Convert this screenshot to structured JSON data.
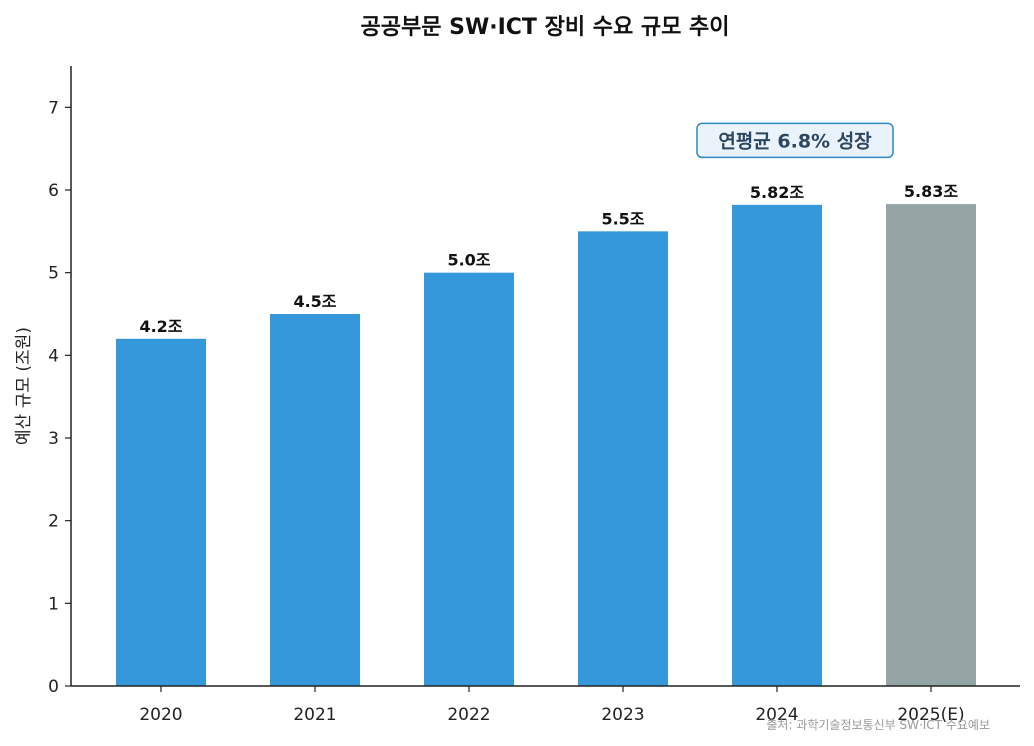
{
  "chart_data": {
    "type": "bar",
    "title": "공공부문 SW·ICT 장비 수요 규모 추이",
    "ylabel": "예산 규모 (조원)",
    "xlabel": "",
    "categories": [
      "2020",
      "2021",
      "2022",
      "2023",
      "2024",
      "2025(E)"
    ],
    "values": [
      4.2,
      4.5,
      5.0,
      5.5,
      5.82,
      5.83
    ],
    "data_labels": [
      "4.2조",
      "4.5조",
      "5.0조",
      "5.5조",
      "5.82조",
      "5.83조"
    ],
    "bar_colors": [
      "#3598db",
      "#3598db",
      "#3598db",
      "#3598db",
      "#3598db",
      "#95a5a6"
    ],
    "ylim": [
      0,
      7.5
    ],
    "yticks": [
      0,
      1,
      2,
      3,
      4,
      5,
      6,
      7
    ],
    "grid": false,
    "annotation": {
      "text": "연평균 6.8% 성장",
      "near_category": "2024",
      "y": 6.6,
      "box_fill": "#eaf3fb",
      "box_stroke": "#2e86c1"
    },
    "source": "출처: 과학기술정보통신부 SW·ICT 수요예보"
  }
}
